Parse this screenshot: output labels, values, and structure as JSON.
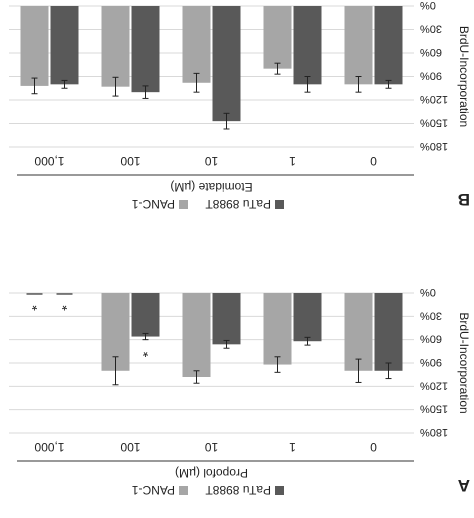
{
  "chart_data": [
    {
      "type": "bar",
      "panel_label": "A",
      "title": "Propofol (µM)",
      "ylabel": "BrdU-Incorporation",
      "categories": [
        "0",
        "1",
        "10",
        "100",
        "1,000"
      ],
      "ylim": [
        0,
        180
      ],
      "yticks": [
        "0%",
        "30%",
        "60%",
        "90%",
        "120%",
        "150%",
        "180%"
      ],
      "series": [
        {
          "name": "PaTu 8988T",
          "color": "#595959",
          "values": [
            100,
            62,
            66,
            56,
            0
          ],
          "errors": [
            10,
            5,
            5,
            4,
            0
          ]
        },
        {
          "name": "PANC-1",
          "color": "#a6a6a6",
          "values": [
            100,
            92,
            108,
            100,
            0
          ],
          "errors": [
            15,
            10,
            8,
            18,
            0
          ]
        }
      ],
      "significance": [
        {
          "series": "PaTu 8988T",
          "category": "100",
          "marker": "*"
        },
        {
          "series": "PaTu 8988T",
          "category": "1,000",
          "marker": "*"
        },
        {
          "series": "PANC-1",
          "category": "1,000",
          "marker": "*"
        }
      ],
      "legend_position": "bottom"
    },
    {
      "type": "bar",
      "panel_label": "B",
      "title": "Etomidate (µM)",
      "ylabel": "BrdU-Incorporation",
      "categories": [
        "0",
        "1",
        "10",
        "100",
        "1,000"
      ],
      "ylim": [
        0,
        180
      ],
      "yticks": [
        "0%",
        "30%",
        "60%",
        "90%",
        "120%",
        "150%",
        "180%"
      ],
      "series": [
        {
          "name": "PaTu 8988T",
          "color": "#595959",
          "values": [
            100,
            100,
            147,
            110,
            100
          ],
          "errors": [
            5,
            10,
            10,
            8,
            5
          ]
        },
        {
          "name": "PANC-1",
          "color": "#a6a6a6",
          "values": [
            100,
            80,
            98,
            103,
            102
          ],
          "errors": [
            10,
            7,
            12,
            12,
            10
          ]
        }
      ],
      "legend_position": "bottom"
    }
  ]
}
